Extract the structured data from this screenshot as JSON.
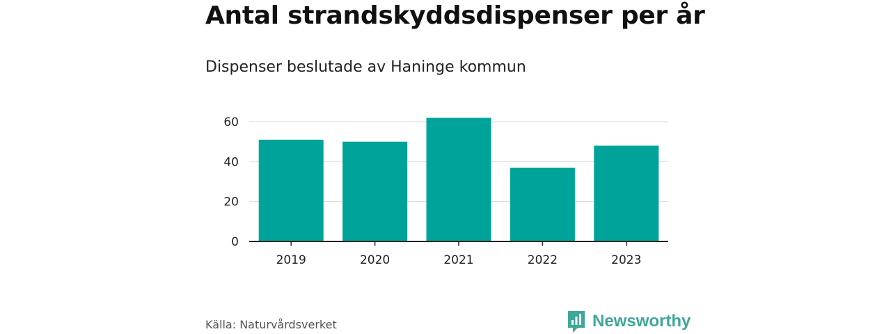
{
  "title": "Antal strandskyddsdispenser per år",
  "subtitle": "Dispenser beslutade av Haninge kommun",
  "source": "Källa: Naturvårdsverket",
  "brand": {
    "name": "Newsworthy",
    "icon": "newsworthy-logo-icon",
    "color": "#3fa79a"
  },
  "colors": {
    "bar": "#00a39a",
    "grid": "#d9d9d9",
    "axis": "#222222",
    "text": "#222222"
  },
  "chart_data": {
    "type": "bar",
    "categories": [
      "2019",
      "2020",
      "2021",
      "2022",
      "2023"
    ],
    "values": [
      51,
      50,
      62,
      37,
      48
    ],
    "yticks": [
      0,
      20,
      40,
      60
    ],
    "ylim": [
      0,
      65
    ],
    "xlabel": "",
    "ylabel": "",
    "grid": true
  }
}
